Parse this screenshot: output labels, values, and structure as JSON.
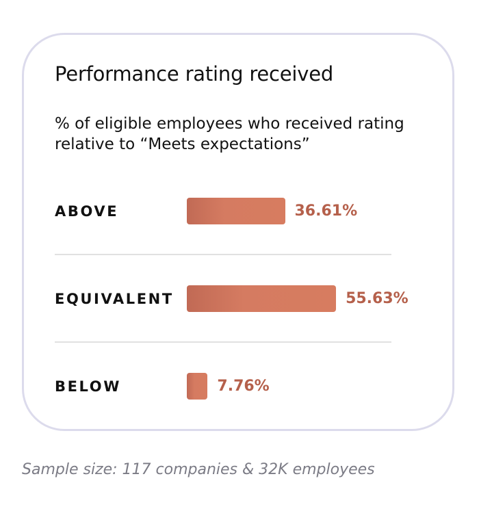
{
  "chart_data": {
    "type": "bar",
    "orientation": "horizontal",
    "title": "Performance rating received",
    "subtitle": "% of eligible employees who received rating relative to “Meets expectations”",
    "categories": [
      "ABOVE",
      "EQUIVALENT",
      "BELOW"
    ],
    "values": [
      36.61,
      55.63,
      7.76
    ],
    "value_labels": [
      "36.61%",
      "55.63%",
      "7.76%"
    ],
    "unit": "%",
    "grid": false,
    "legend": "none"
  },
  "footnote": "Sample size: 117 companies & 32K employees",
  "colors": {
    "bar": "#d77c60",
    "bar_dark": "#c16a55",
    "value_text": "#b5604b",
    "card_border": "#dcdbec",
    "divider": "#e1e1e1",
    "footnote": "#7b7b85"
  }
}
